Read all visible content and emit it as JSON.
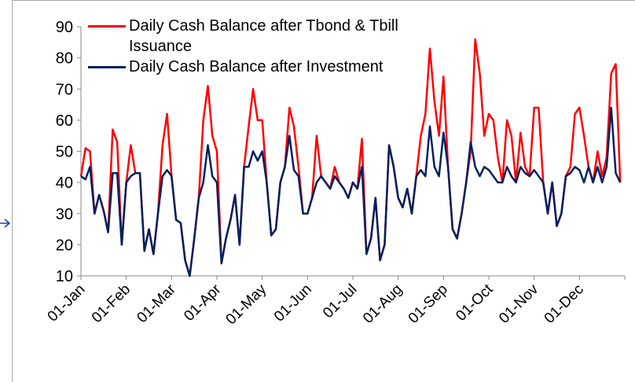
{
  "chart_data": {
    "type": "line",
    "categories": [
      "01-Jan",
      null,
      null,
      null,
      null,
      null,
      null,
      null,
      null,
      null,
      "01-Feb",
      null,
      null,
      null,
      null,
      null,
      null,
      null,
      null,
      null,
      "01-Mar",
      null,
      null,
      null,
      null,
      null,
      null,
      null,
      null,
      null,
      "01-Apr",
      null,
      null,
      null,
      null,
      null,
      null,
      null,
      null,
      null,
      "01-May",
      null,
      null,
      null,
      null,
      null,
      null,
      null,
      null,
      null,
      "01-Jun",
      null,
      null,
      null,
      null,
      null,
      null,
      null,
      null,
      null,
      "01-Jul",
      null,
      null,
      null,
      null,
      null,
      null,
      null,
      null,
      null,
      "01-Aug",
      null,
      null,
      null,
      null,
      null,
      null,
      null,
      null,
      null,
      "01-Sep",
      null,
      null,
      null,
      null,
      null,
      null,
      null,
      null,
      null,
      "01-Oct",
      null,
      null,
      null,
      null,
      null,
      null,
      null,
      null,
      null,
      "01-Nov",
      null,
      null,
      null,
      null,
      null,
      null,
      null,
      null,
      null,
      "01-Dec",
      null,
      null,
      null,
      null,
      null,
      null,
      null,
      null,
      null
    ],
    "series": [
      {
        "name": "Daily Cash Balance after Tbond & Tbill Issuance",
        "color": "#ff0000",
        "values": [
          42,
          51,
          50,
          30,
          36,
          31,
          24,
          57,
          53,
          20,
          40,
          52,
          43,
          43,
          18,
          25,
          17,
          30,
          52,
          62,
          42,
          28,
          27,
          15,
          10,
          22,
          35,
          60,
          71,
          55,
          50,
          14,
          22,
          28,
          36,
          20,
          45,
          58,
          70,
          60,
          60,
          40,
          23,
          25,
          40,
          45,
          64,
          58,
          45,
          30,
          30,
          35,
          55,
          42,
          40,
          38,
          45,
          40,
          38,
          35,
          40,
          38,
          54,
          17,
          22,
          35,
          15,
          20,
          52,
          45,
          35,
          32,
          38,
          30,
          42,
          55,
          62,
          83,
          66,
          55,
          74,
          45,
          25,
          22,
          30,
          40,
          50,
          86,
          75,
          55,
          62,
          60,
          48,
          40,
          60,
          55,
          40,
          56,
          45,
          42,
          64,
          64,
          40,
          30,
          40,
          26,
          30,
          42,
          45,
          62,
          64,
          55,
          45,
          40,
          50,
          42,
          48,
          75,
          78,
          40
        ]
      },
      {
        "name": "Daily Cash Balance after Investment",
        "color": "#002060",
        "values": [
          42,
          41,
          45,
          30,
          36,
          31,
          24,
          43,
          43,
          20,
          40,
          42,
          43,
          43,
          18,
          25,
          17,
          30,
          42,
          44,
          42,
          28,
          27,
          15,
          10,
          22,
          35,
          40,
          52,
          42,
          40,
          14,
          22,
          28,
          36,
          20,
          45,
          45,
          50,
          47,
          50,
          40,
          23,
          25,
          40,
          45,
          55,
          44,
          42,
          30,
          30,
          35,
          40,
          42,
          40,
          38,
          42,
          40,
          38,
          35,
          40,
          38,
          45,
          17,
          22,
          35,
          15,
          20,
          52,
          45,
          35,
          32,
          38,
          30,
          42,
          44,
          42,
          58,
          45,
          42,
          56,
          45,
          25,
          22,
          30,
          40,
          53,
          45,
          42,
          45,
          44,
          42,
          40,
          40,
          45,
          42,
          40,
          45,
          43,
          42,
          44,
          42,
          40,
          30,
          40,
          26,
          30,
          42,
          43,
          45,
          44,
          40,
          45,
          40,
          45,
          40,
          45,
          64,
          43,
          40
        ]
      }
    ],
    "ylim": [
      10,
      90
    ],
    "yticks": [
      10,
      20,
      30,
      40,
      50,
      60,
      70,
      80,
      90
    ],
    "grid": false,
    "legend": "top-left"
  }
}
